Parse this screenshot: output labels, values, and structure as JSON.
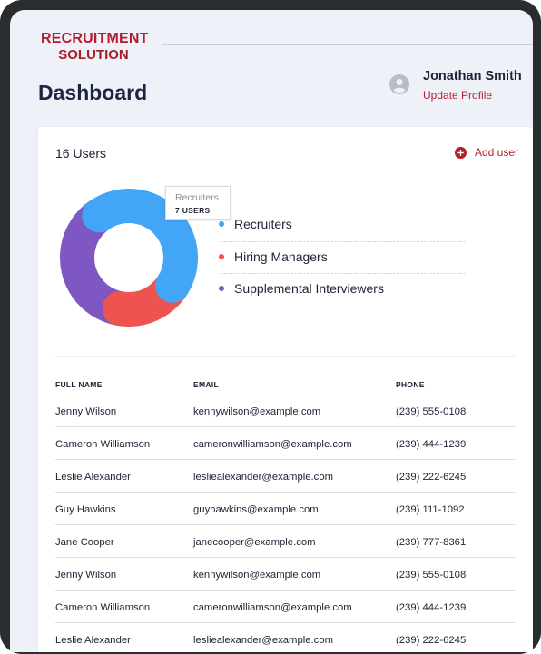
{
  "app": {
    "logo_line1": "RECRUITMENT",
    "logo_line2": "SOLUTION"
  },
  "header": {
    "page_title": "Dashboard",
    "user_name": "Jonathan Smith",
    "update_profile_label": "Update Profile"
  },
  "summary": {
    "users_label": "16 Users",
    "add_user_label": "Add user"
  },
  "tooltip": {
    "label": "Recruiters",
    "value": "7 USERS"
  },
  "legend": [
    {
      "label": "Recruiters",
      "color": "#42a5f5"
    },
    {
      "label": "Hiring Managers",
      "color": "#ef5350"
    },
    {
      "label": "Supplemental Interviewers",
      "color": "#7e57c2"
    }
  ],
  "chart_data": {
    "type": "pie",
    "categories": [
      "Recruiters",
      "Hiring Managers",
      "Supplemental Interviewers"
    ],
    "values": [
      7,
      3,
      6
    ],
    "colors": [
      "#42a5f5",
      "#ef5350",
      "#7e57c2"
    ]
  },
  "colors": {
    "accent": "#b3202f",
    "title": "#1d2640",
    "background": "#eef1f8"
  },
  "table": {
    "headers": [
      "FULL NAME",
      "EMAIL",
      "PHONE"
    ],
    "rows": [
      {
        "name": "Jenny Wilson",
        "email": "kennywilson@example.com",
        "phone": "(239) 555-0108"
      },
      {
        "name": "Cameron Williamson",
        "email": "cameronwilliamson@example.com",
        "phone": "(239) 444-1239"
      },
      {
        "name": "Leslie Alexander",
        "email": "lesliealexander@example.com",
        "phone": "(239) 222-6245"
      },
      {
        "name": "Guy Hawkins",
        "email": "guyhawkins@example.com",
        "phone": "(239) 111-1092"
      },
      {
        "name": "Jane Cooper",
        "email": "janecooper@example.com",
        "phone": "(239) 777-8361"
      },
      {
        "name": "Jenny Wilson",
        "email": "kennywilson@example.com",
        "phone": "(239) 555-0108"
      },
      {
        "name": "Cameron Williamson",
        "email": "cameronwilliamson@example.com",
        "phone": "(239) 444-1239"
      },
      {
        "name": "Leslie Alexander",
        "email": "lesliealexander@example.com",
        "phone": "(239) 222-6245"
      }
    ]
  }
}
